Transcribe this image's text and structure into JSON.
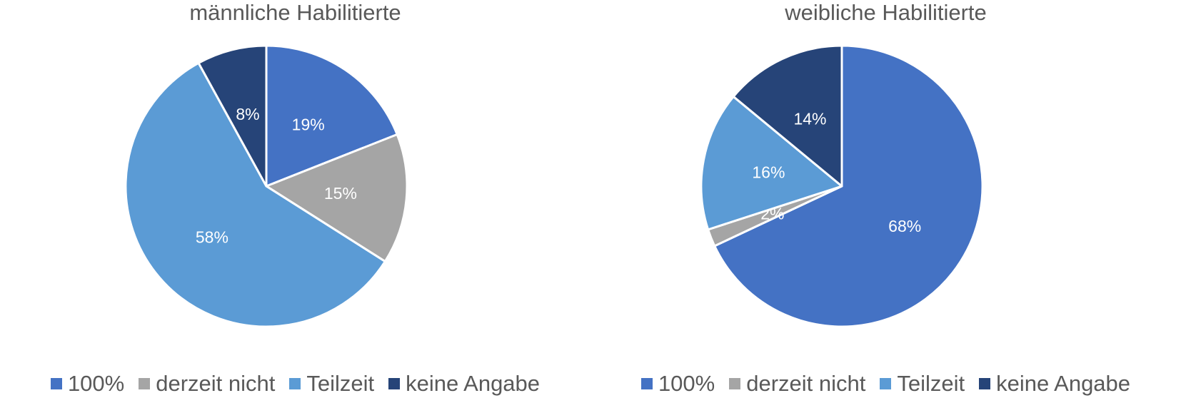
{
  "chart_data": [
    {
      "type": "pie",
      "title": "männliche Habilitierte",
      "categories": [
        "100%",
        "derzeit nicht",
        "Teilzeit",
        "keine Angabe"
      ],
      "values": [
        19,
        15,
        58,
        8
      ],
      "labels": [
        "19%",
        "15%",
        "58%",
        "8%"
      ],
      "colors": [
        "#4472C4",
        "#A5A5A5",
        "#5B9BD5",
        "#264478"
      ],
      "legend": "bottom"
    },
    {
      "type": "pie",
      "title": "weibliche Habilitierte",
      "categories": [
        "100%",
        "derzeit nicht",
        "Teilzeit",
        "keine Angabe"
      ],
      "values": [
        68,
        2,
        16,
        14
      ],
      "labels": [
        "68%",
        "2%",
        "16%",
        "14%"
      ],
      "colors": [
        "#4472C4",
        "#A5A5A5",
        "#5B9BD5",
        "#264478"
      ],
      "legend": "bottom"
    }
  ]
}
